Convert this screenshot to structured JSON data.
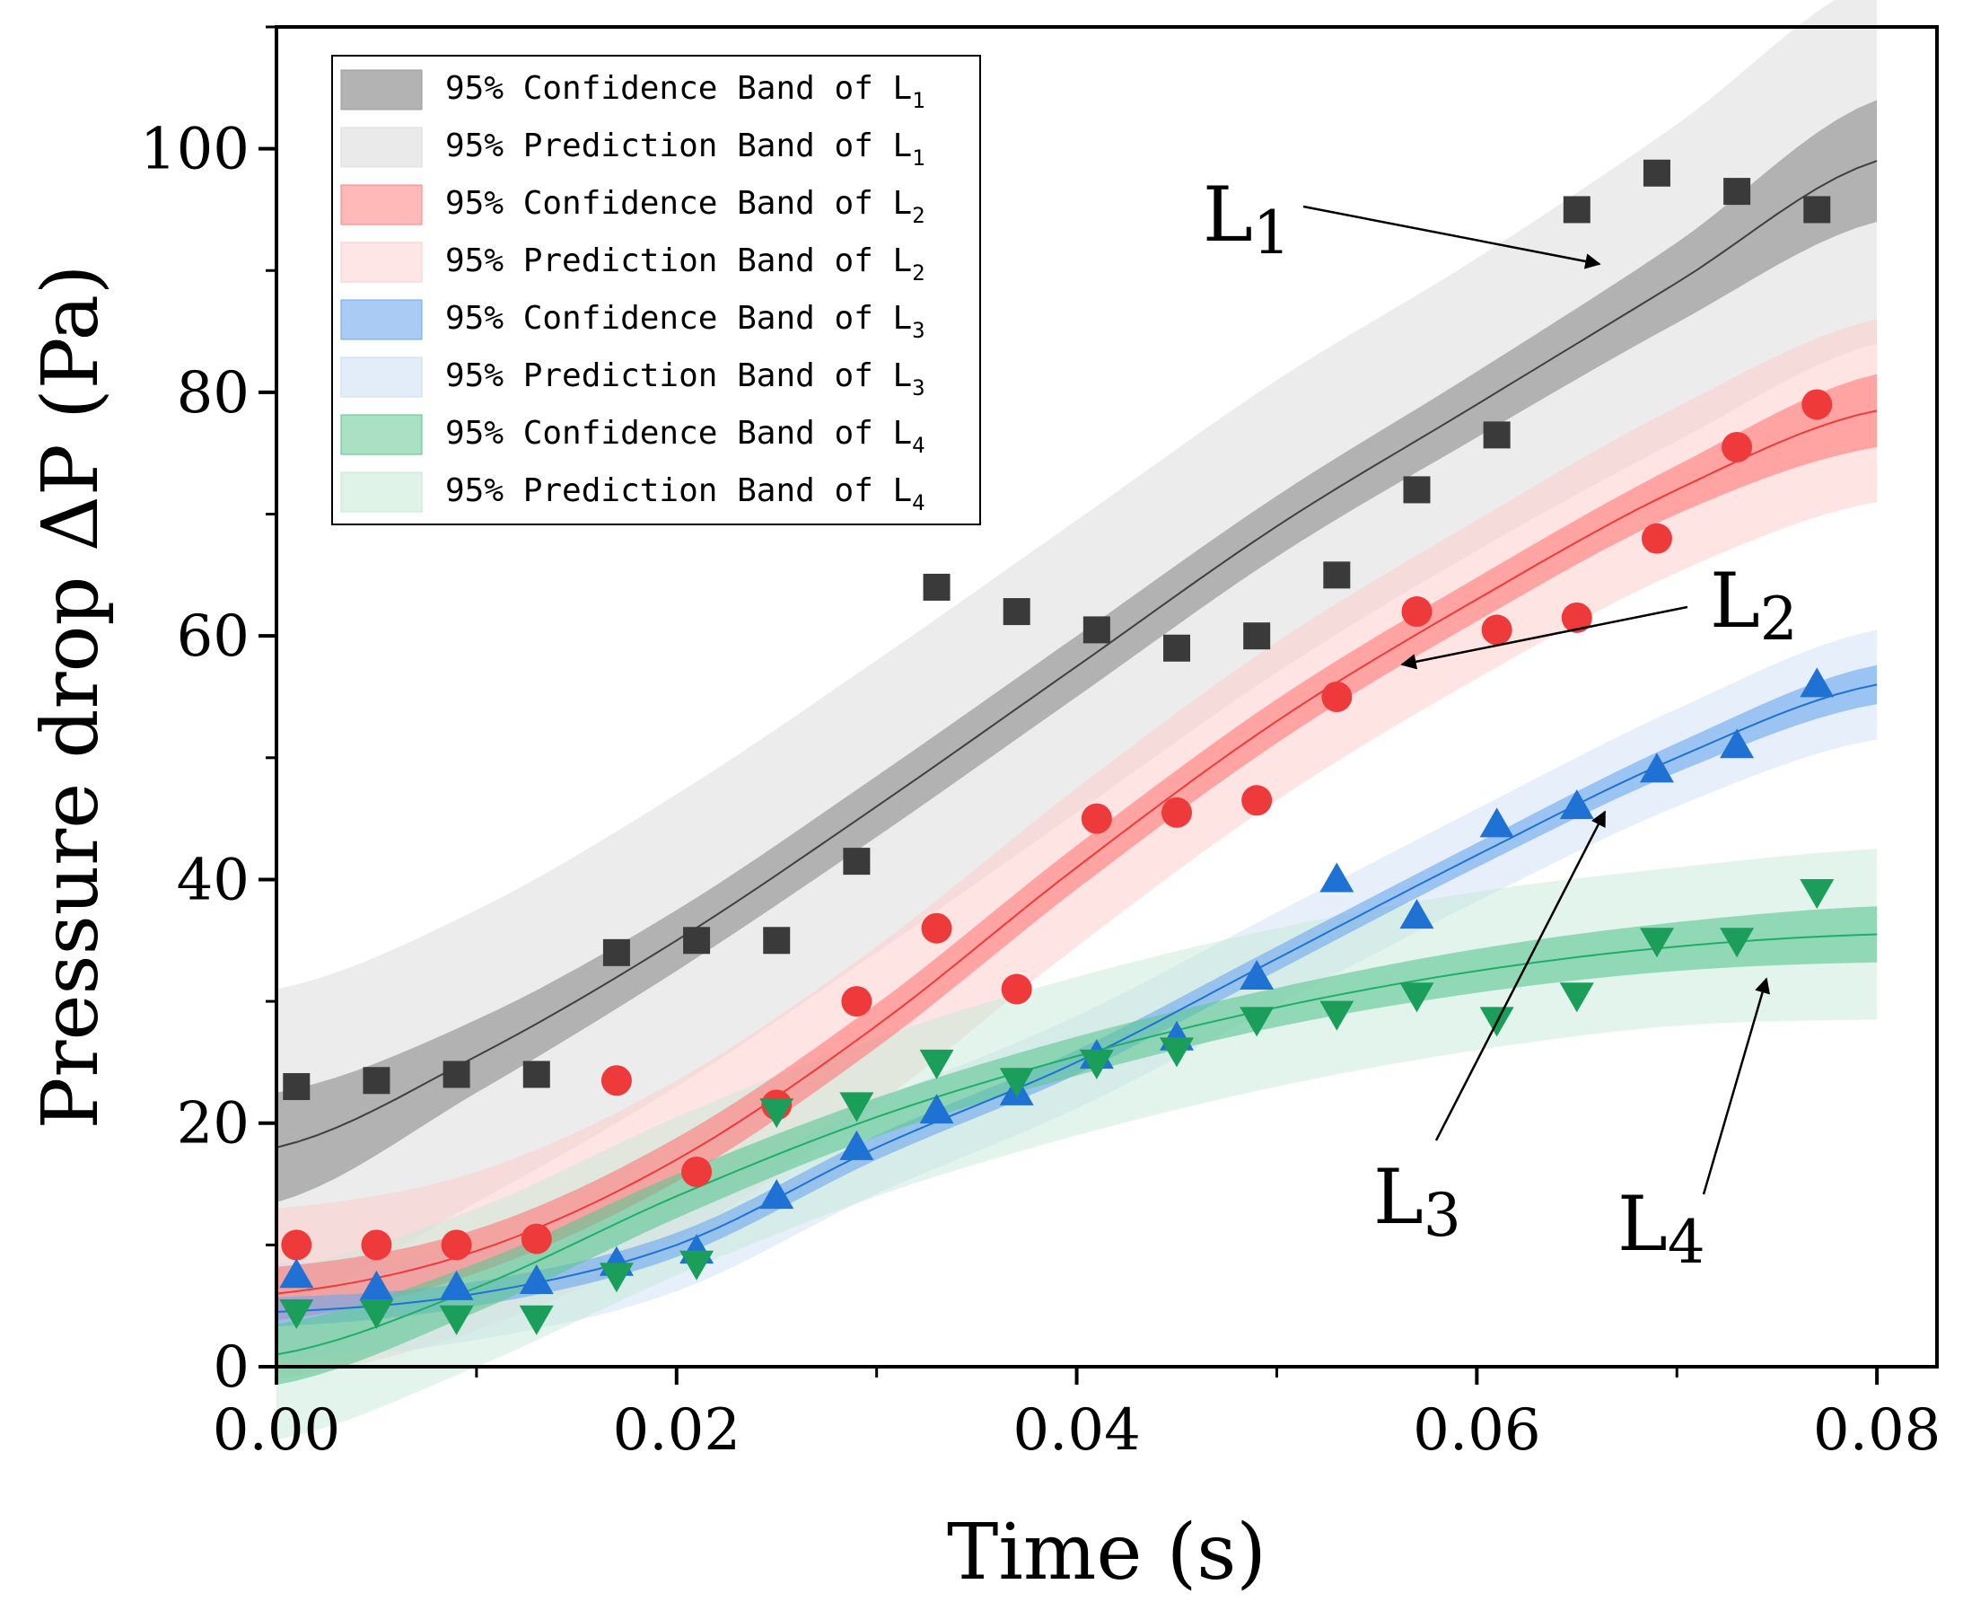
{
  "chart_data": {
    "type": "scatter",
    "xlabel": "Time (s)",
    "ylabel": "Pressure drop  ΔP (Pa)",
    "xlim": [
      0.0,
      0.083
    ],
    "ylim": [
      0,
      110
    ],
    "xticks": [
      0.0,
      0.02,
      0.04,
      0.06,
      0.08
    ],
    "xtick_labels": [
      "0.00",
      "0.02",
      "0.04",
      "0.06",
      "0.08"
    ],
    "yticks": [
      0,
      20,
      40,
      60,
      80,
      100
    ],
    "ytick_labels": [
      "0",
      "20",
      "40",
      "60",
      "80",
      "100"
    ],
    "grid": false,
    "legend_position": "top-left",
    "legend": [
      {
        "text": "95% Confidence Band of L",
        "sub": "1",
        "color": "#9a9a9a",
        "opacity": 0.75
      },
      {
        "text": "95% Prediction Band of L",
        "sub": "1",
        "color": "#dcdcdc",
        "opacity": 0.6
      },
      {
        "text": "95% Confidence Band of L",
        "sub": "2",
        "color": "#ff7f7f",
        "opacity": 0.55
      },
      {
        "text": "95% Prediction Band of L",
        "sub": "2",
        "color": "#ffc8c8",
        "opacity": 0.45
      },
      {
        "text": "95% Confidence Band of L",
        "sub": "3",
        "color": "#6fa8ec",
        "opacity": 0.6
      },
      {
        "text": "95% Prediction Band of L",
        "sub": "3",
        "color": "#c8dcf6",
        "opacity": 0.5
      },
      {
        "text": "95% Confidence Band of L",
        "sub": "4",
        "color": "#55c48c",
        "opacity": 0.5
      },
      {
        "text": "95% Prediction Band of L",
        "sub": "4",
        "color": "#c2e8d4",
        "opacity": 0.5
      }
    ],
    "annotations": [
      {
        "text": "L",
        "sub": "1",
        "series": "L1"
      },
      {
        "text": "L",
        "sub": "2",
        "series": "L2"
      },
      {
        "text": "L",
        "sub": "3",
        "series": "L3"
      },
      {
        "text": "L",
        "sub": "4",
        "series": "L4"
      }
    ],
    "x": [
      0.001,
      0.005,
      0.009,
      0.013,
      0.017,
      0.021,
      0.025,
      0.029,
      0.033,
      0.037,
      0.041,
      0.045,
      0.049,
      0.053,
      0.057,
      0.061,
      0.065,
      0.069,
      0.073,
      0.077
    ],
    "series": [
      {
        "name": "L1",
        "marker": "square",
        "color": "#3a3a3a",
        "line_color": "#404040",
        "conf_color": "#8c8c8c",
        "pred_color": "#dadada",
        "values": [
          23,
          23.5,
          24,
          24,
          34,
          35,
          35,
          41.5,
          64,
          62,
          60.5,
          59,
          60,
          65,
          72,
          76.5,
          95,
          98,
          96.5,
          95
        ],
        "fit_x": [
          0.0,
          0.01,
          0.02,
          0.03,
          0.04,
          0.05,
          0.06,
          0.07,
          0.08
        ],
        "fit_y": [
          18,
          25.5,
          35,
          46,
          57.5,
          69,
          79,
          89,
          99
        ],
        "conf_halfwidth": [
          4.5,
          3,
          2.5,
          2.5,
          2.5,
          2.5,
          2.7,
          3.3,
          5
        ],
        "pred_halfwidth": [
          13,
          12,
          12,
          12,
          12,
          12,
          12,
          13,
          15
        ]
      },
      {
        "name": "L2",
        "marker": "circle",
        "color": "#ee3a3a",
        "line_color": "#ee3a3a",
        "conf_color": "#ff7878",
        "pred_color": "#ffcaca",
        "values": [
          10,
          10,
          10,
          10.5,
          23.5,
          16,
          21.5,
          30,
          36,
          31,
          45,
          45.5,
          46.5,
          55,
          62,
          60.5,
          61.5,
          68,
          75.5,
          79
        ],
        "fit_x": [
          0.0,
          0.01,
          0.02,
          0.03,
          0.04,
          0.05,
          0.06,
          0.07,
          0.08
        ],
        "fit_y": [
          6,
          9.5,
          17,
          28,
          41,
          53,
          63,
          72,
          78.5
        ],
        "conf_halfwidth": [
          2.2,
          1.8,
          1.8,
          1.8,
          1.8,
          1.8,
          1.8,
          2,
          3
        ],
        "pred_halfwidth": [
          7,
          6.5,
          6.5,
          6.5,
          6.5,
          6.5,
          6.5,
          6.8,
          7.5
        ]
      },
      {
        "name": "L3",
        "marker": "triangle-up",
        "color": "#1f72d4",
        "line_color": "#1f72d4",
        "conf_color": "#6aa6ec",
        "pred_color": "#cfe0f7",
        "values": [
          7.5,
          6.5,
          6.5,
          7,
          8.5,
          9.5,
          14,
          18,
          21,
          22.5,
          25.5,
          27,
          32,
          40,
          37,
          44.5,
          46,
          49,
          51,
          56
        ],
        "fit_x": [
          0.0,
          0.01,
          0.02,
          0.03,
          0.04,
          0.05,
          0.06,
          0.07,
          0.08
        ],
        "fit_y": [
          4.5,
          6,
          10,
          18,
          25,
          33.5,
          42,
          50,
          56
        ],
        "conf_halfwidth": [
          1.2,
          1,
          1,
          1,
          1,
          1,
          1,
          1.2,
          1.6
        ],
        "pred_halfwidth": [
          4,
          3.8,
          3.8,
          3.8,
          3.8,
          3.8,
          3.8,
          4,
          4.5
        ]
      },
      {
        "name": "L4",
        "marker": "triangle-down",
        "color": "#1a9e5a",
        "line_color": "#1fae68",
        "conf_color": "#5cc793",
        "pred_color": "#c5ead7",
        "values": [
          4.5,
          4.5,
          4,
          4,
          7.5,
          8.5,
          21,
          21.5,
          25,
          23.5,
          25,
          26,
          28.5,
          29,
          30.5,
          28.5,
          30.5,
          35,
          35,
          39
        ],
        "fit_x": [
          0.0,
          0.01,
          0.02,
          0.03,
          0.04,
          0.05,
          0.06,
          0.07,
          0.08
        ],
        "fit_y": [
          1,
          6.5,
          14,
          20.5,
          25.5,
          29.5,
          32.5,
          34.5,
          35.5
        ],
        "conf_halfwidth": [
          2.5,
          2,
          1.8,
          1.6,
          1.6,
          1.6,
          1.8,
          2,
          2.3
        ],
        "pred_halfwidth": [
          7,
          6.5,
          6.5,
          6.5,
          6.5,
          6.5,
          6.5,
          6.5,
          7
        ]
      }
    ]
  }
}
